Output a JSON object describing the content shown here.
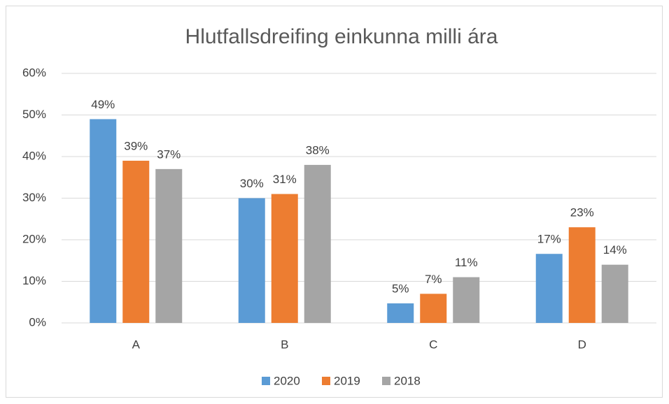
{
  "chart_data": {
    "type": "bar",
    "title": "Hlutfallsdreifing einkunna milli ára",
    "categories": [
      "A",
      "B",
      "C",
      "D"
    ],
    "series": [
      {
        "name": "2020",
        "color": "#5b9bd5",
        "values": [
          49,
          30,
          4.7,
          16.6
        ],
        "value_labels": [
          "49%",
          "30%",
          "5%",
          "17%"
        ]
      },
      {
        "name": "2019",
        "color": "#ed7d31",
        "values": [
          39,
          31,
          7,
          23
        ],
        "value_labels": [
          "39%",
          "31%",
          "7%",
          "23%"
        ]
      },
      {
        "name": "2018",
        "color": "#a5a5a5",
        "values": [
          37,
          38,
          11,
          14
        ],
        "value_labels": [
          "37%",
          "38%",
          "11%",
          "14%"
        ]
      }
    ],
    "ylim": [
      0,
      60
    ],
    "yticks": [
      {
        "value": 0,
        "label": "0%"
      },
      {
        "value": 10,
        "label": "10%"
      },
      {
        "value": 20,
        "label": "20%"
      },
      {
        "value": 30,
        "label": "30%"
      },
      {
        "value": 40,
        "label": "40%"
      },
      {
        "value": 50,
        "label": "50%"
      },
      {
        "value": 60,
        "label": "60%"
      }
    ],
    "grid": true,
    "legend": "bottom"
  }
}
